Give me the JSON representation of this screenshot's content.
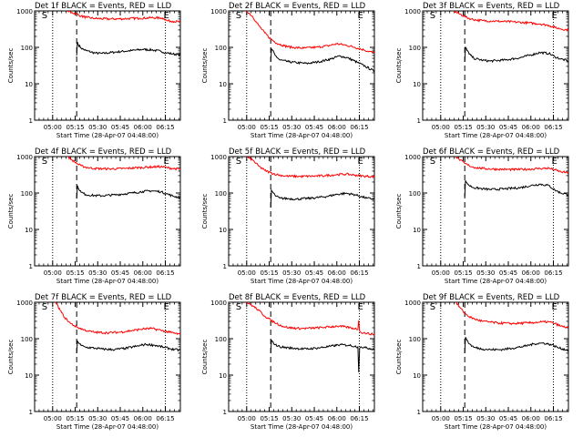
{
  "figure": {
    "legend_text": "BLACK = Events, RED = LLD",
    "ylabel": "Counts/sec",
    "xlabel": "Start Time (28-Apr-07 04:48:00)",
    "x_tick_labels": [
      "05:00",
      "05:15",
      "05:30",
      "05:45",
      "06:00",
      "06:15"
    ],
    "y_tick_labels": [
      "1",
      "10",
      "100",
      "1000"
    ],
    "start_marker": "S",
    "end_marker": "E",
    "colors": {
      "events": "#000000",
      "lld": "#ff0000"
    }
  },
  "chart_data": [
    {
      "type": "line",
      "title": "Det 1f",
      "xlabel": "Start Time (28-Apr-07 04:48:00)",
      "ylabel": "Counts/sec",
      "x_unit": "minutes since 04:48:00",
      "xlim": [
        0,
        97
      ],
      "ylim": [
        1,
        1000
      ],
      "y_scale": "log",
      "dotted_lines_x": [
        12,
        87
      ],
      "dashed_line_x": 28,
      "series": [
        {
          "name": "Events",
          "color": "#000000",
          "x": [
            28,
            28.5,
            29,
            31,
            34,
            40,
            45,
            55,
            65,
            72,
            78,
            84,
            88,
            92,
            97
          ],
          "values": [
            60,
            140,
            120,
            95,
            82,
            70,
            68,
            75,
            82,
            88,
            85,
            78,
            70,
            66,
            62
          ]
        },
        {
          "name": "LLD",
          "color": "#ff0000",
          "x": [
            22,
            25,
            28,
            31,
            35,
            40,
            50,
            60,
            70,
            78,
            84,
            86,
            88,
            92,
            97
          ],
          "values": [
            1000,
            900,
            820,
            720,
            660,
            620,
            600,
            610,
            630,
            650,
            640,
            620,
            540,
            520,
            500
          ]
        }
      ]
    },
    {
      "type": "line",
      "title": "Det 2f",
      "xlabel": "Start Time (28-Apr-07 04:48:00)",
      "ylabel": "Counts/sec",
      "x_unit": "minutes since 04:48:00",
      "xlim": [
        0,
        97
      ],
      "ylim": [
        1,
        1000
      ],
      "y_scale": "log",
      "dotted_lines_x": [
        12,
        87
      ],
      "dashed_line_x": 28,
      "series": [
        {
          "name": "Events",
          "color": "#000000",
          "x": [
            28,
            28.5,
            29,
            31,
            34,
            40,
            45,
            52,
            60,
            68,
            74,
            80,
            86,
            91,
            97
          ],
          "values": [
            40,
            90,
            85,
            60,
            45,
            40,
            38,
            36,
            40,
            48,
            58,
            50,
            38,
            30,
            22
          ]
        },
        {
          "name": "LLD",
          "color": "#ff0000",
          "x": [
            12,
            16,
            20,
            24,
            28,
            32,
            37,
            42,
            50,
            58,
            66,
            72,
            78,
            84,
            90,
            97
          ],
          "values": [
            1000,
            700,
            400,
            250,
            170,
            130,
            110,
            100,
            95,
            100,
            110,
            125,
            115,
            100,
            85,
            70
          ]
        }
      ]
    },
    {
      "type": "line",
      "title": "Det 3f",
      "xlabel": "Start Time (28-Apr-07 04:48:00)",
      "ylabel": "Counts/sec",
      "x_unit": "minutes since 04:48:00",
      "xlim": [
        0,
        97
      ],
      "ylim": [
        1,
        1000
      ],
      "y_scale": "log",
      "dotted_lines_x": [
        12,
        87
      ],
      "dashed_line_x": 28,
      "series": [
        {
          "name": "Events",
          "color": "#000000",
          "x": [
            28,
            28.5,
            29,
            31,
            34,
            40,
            45,
            55,
            65,
            72,
            78,
            84,
            88,
            92,
            97
          ],
          "values": [
            40,
            100,
            95,
            65,
            50,
            44,
            42,
            45,
            52,
            62,
            72,
            68,
            55,
            48,
            42
          ]
        },
        {
          "name": "LLD",
          "color": "#ff0000",
          "x": [
            20,
            24,
            28,
            32,
            36,
            40,
            50,
            60,
            70,
            78,
            84,
            88,
            92,
            97
          ],
          "values": [
            1000,
            850,
            700,
            600,
            560,
            540,
            520,
            500,
            470,
            440,
            400,
            350,
            320,
            300
          ]
        }
      ]
    },
    {
      "type": "line",
      "title": "Det 4f",
      "xlabel": "Start Time (28-Apr-07 04:48:00)",
      "ylabel": "Counts/sec",
      "x_unit": "minutes since 04:48:00",
      "xlim": [
        0,
        97
      ],
      "ylim": [
        1,
        1000
      ],
      "y_scale": "log",
      "dotted_lines_x": [
        12,
        87
      ],
      "dashed_line_x": 28,
      "series": [
        {
          "name": "Events",
          "color": "#000000",
          "x": [
            28,
            28.5,
            29,
            31,
            34,
            40,
            45,
            55,
            65,
            72,
            78,
            84,
            88,
            92,
            97
          ],
          "values": [
            70,
            160,
            140,
            105,
            90,
            85,
            84,
            90,
            100,
            110,
            115,
            108,
            95,
            82,
            75
          ]
        },
        {
          "name": "LLD",
          "color": "#ff0000",
          "x": [
            22,
            25,
            28,
            31,
            35,
            40,
            50,
            60,
            70,
            78,
            84,
            88,
            92,
            97
          ],
          "values": [
            1000,
            800,
            650,
            560,
            500,
            470,
            460,
            470,
            500,
            520,
            530,
            500,
            470,
            450
          ]
        }
      ]
    },
    {
      "type": "line",
      "title": "Det 5f",
      "xlabel": "Start Time (28-Apr-07 04:48:00)",
      "ylabel": "Counts/sec",
      "x_unit": "minutes since 04:48:00",
      "xlim": [
        0,
        97
      ],
      "ylim": [
        1,
        1000
      ],
      "y_scale": "log",
      "dotted_lines_x": [
        12,
        87
      ],
      "dashed_line_x": 28,
      "series": [
        {
          "name": "Events",
          "color": "#000000",
          "x": [
            28,
            28.5,
            29,
            31,
            34,
            40,
            45,
            55,
            65,
            72,
            78,
            84,
            88,
            92,
            97
          ],
          "values": [
            40,
            120,
            110,
            85,
            72,
            70,
            68,
            72,
            80,
            92,
            98,
            90,
            80,
            72,
            68
          ]
        },
        {
          "name": "LLD",
          "color": "#ff0000",
          "x": [
            12,
            16,
            20,
            24,
            28,
            32,
            36,
            40,
            48,
            56,
            64,
            72,
            78,
            84,
            90,
            97
          ],
          "values": [
            1000,
            800,
            550,
            420,
            360,
            320,
            300,
            290,
            285,
            290,
            300,
            320,
            330,
            310,
            290,
            280
          ]
        }
      ]
    },
    {
      "type": "line",
      "title": "Det 6f",
      "xlabel": "Start Time (28-Apr-07 04:48:00)",
      "ylabel": "Counts/sec",
      "x_unit": "minutes since 04:48:00",
      "xlim": [
        0,
        97
      ],
      "ylim": [
        1,
        1000
      ],
      "y_scale": "log",
      "dotted_lines_x": [
        12,
        87
      ],
      "dashed_line_x": 28,
      "series": [
        {
          "name": "Events",
          "color": "#000000",
          "x": [
            28,
            28.5,
            29,
            31,
            34,
            40,
            45,
            55,
            65,
            72,
            78,
            84,
            88,
            92,
            97
          ],
          "values": [
            80,
            220,
            200,
            160,
            140,
            130,
            125,
            130,
            140,
            160,
            175,
            160,
            120,
            100,
            90
          ]
        },
        {
          "name": "LLD",
          "color": "#ff0000",
          "x": [
            22,
            25,
            28,
            31,
            35,
            40,
            50,
            60,
            70,
            78,
            84,
            88,
            92,
            97
          ],
          "values": [
            1000,
            800,
            650,
            560,
            500,
            470,
            450,
            440,
            450,
            470,
            480,
            430,
            380,
            360
          ]
        }
      ]
    },
    {
      "type": "line",
      "title": "Det 7f",
      "xlabel": "Start Time (28-Apr-07 04:48:00)",
      "ylabel": "Counts/sec",
      "x_unit": "minutes since 04:48:00",
      "xlim": [
        0,
        97
      ],
      "ylim": [
        1,
        1000
      ],
      "y_scale": "log",
      "dotted_lines_x": [
        12,
        87
      ],
      "dashed_line_x": 28,
      "series": [
        {
          "name": "Events",
          "color": "#000000",
          "x": [
            28,
            28.5,
            29,
            31,
            34,
            40,
            45,
            52,
            60,
            68,
            74,
            80,
            86,
            91,
            97
          ],
          "values": [
            40,
            85,
            80,
            65,
            58,
            55,
            52,
            50,
            54,
            62,
            70,
            66,
            58,
            52,
            48
          ]
        },
        {
          "name": "LLD",
          "color": "#ff0000",
          "x": [
            14,
            17,
            20,
            24,
            28,
            32,
            36,
            40,
            48,
            56,
            64,
            72,
            78,
            84,
            90,
            97
          ],
          "values": [
            1000,
            600,
            380,
            260,
            210,
            180,
            160,
            150,
            145,
            150,
            165,
            185,
            190,
            170,
            150,
            130
          ]
        }
      ]
    },
    {
      "type": "line",
      "title": "Det 8f",
      "xlabel": "Start Time (28-Apr-07 04:48:00)",
      "ylabel": "Counts/sec",
      "x_unit": "minutes since 04:48:00",
      "xlim": [
        0,
        97
      ],
      "ylim": [
        1,
        1000
      ],
      "y_scale": "log",
      "dotted_lines_x": [
        12,
        87
      ],
      "dashed_line_x": 28,
      "series": [
        {
          "name": "Events",
          "color": "#000000",
          "x": [
            28,
            28.5,
            29,
            31,
            34,
            40,
            45,
            52,
            60,
            68,
            74,
            80,
            84,
            86,
            86.6,
            87.2,
            88,
            91,
            97
          ],
          "values": [
            40,
            90,
            85,
            68,
            60,
            56,
            54,
            52,
            56,
            62,
            68,
            66,
            62,
            60,
            12,
            55,
            60,
            56,
            52
          ]
        },
        {
          "name": "LLD",
          "color": "#ff0000",
          "x": [
            12,
            16,
            20,
            24,
            28,
            32,
            36,
            40,
            48,
            56,
            64,
            72,
            78,
            84,
            86,
            86.6,
            87.2,
            88,
            92,
            97
          ],
          "values": [
            1000,
            800,
            600,
            420,
            320,
            260,
            220,
            200,
            190,
            195,
            205,
            220,
            210,
            190,
            180,
            320,
            160,
            150,
            140,
            130
          ]
        }
      ]
    },
    {
      "type": "line",
      "title": "Det 9f",
      "xlabel": "Start Time (28-Apr-07 04:48:00)",
      "ylabel": "Counts/sec",
      "x_unit": "minutes since 04:48:00",
      "xlim": [
        0,
        97
      ],
      "ylim": [
        1,
        1000
      ],
      "y_scale": "log",
      "dotted_lines_x": [
        12,
        87
      ],
      "dashed_line_x": 28,
      "series": [
        {
          "name": "Events",
          "color": "#000000",
          "x": [
            28,
            28.5,
            29,
            31,
            34,
            40,
            45,
            52,
            60,
            68,
            74,
            80,
            86,
            91,
            97
          ],
          "values": [
            40,
            110,
            100,
            72,
            58,
            52,
            50,
            50,
            55,
            62,
            72,
            76,
            68,
            55,
            48
          ]
        },
        {
          "name": "LLD",
          "color": "#ff0000",
          "x": [
            22,
            25,
            28,
            31,
            35,
            40,
            50,
            60,
            70,
            78,
            84,
            88,
            92,
            97
          ],
          "values": [
            1000,
            700,
            500,
            400,
            340,
            300,
            270,
            260,
            270,
            285,
            290,
            260,
            220,
            200
          ]
        }
      ]
    }
  ]
}
